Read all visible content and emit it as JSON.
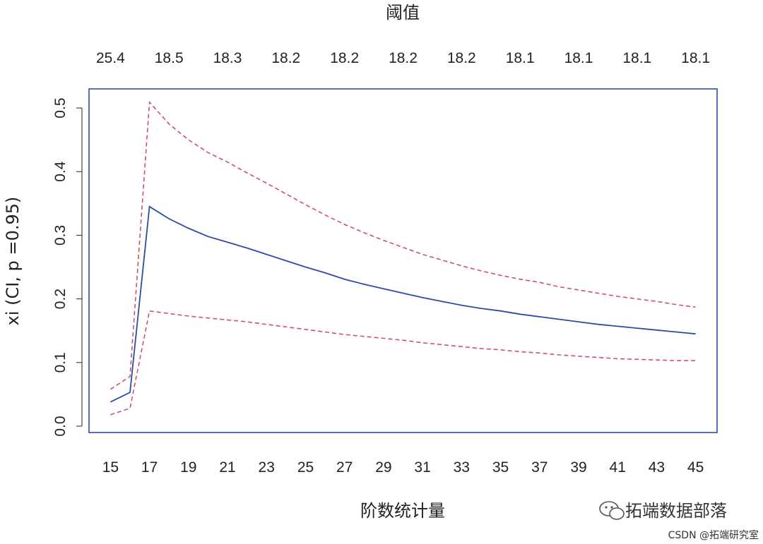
{
  "chart_data": {
    "type": "line",
    "title": "",
    "top_axis_label": "阈值",
    "xlabel": "阶数统计量",
    "ylabel": "xi (CI, p =0.95)",
    "xlim": [
      13.9,
      46.1
    ],
    "ylim": [
      -0.01,
      0.53
    ],
    "x_ticks": [
      15,
      17,
      19,
      21,
      23,
      25,
      27,
      29,
      31,
      33,
      35,
      37,
      39,
      41,
      43,
      45
    ],
    "y_ticks": [
      0.0,
      0.1,
      0.2,
      0.3,
      0.4,
      0.5
    ],
    "y_tick_labels": [
      "0.0",
      "0.1",
      "0.2",
      "0.3",
      "0.4",
      "0.5"
    ],
    "top_ticks": {
      "x": [
        15,
        18,
        21,
        24,
        27,
        30,
        33,
        36,
        39,
        42,
        45
      ],
      "labels": [
        "25.4",
        "18.5",
        "18.3",
        "18.2",
        "18.2",
        "18.2",
        "18.2",
        "18.1",
        "18.1",
        "18.1",
        "18.1"
      ]
    },
    "x": [
      15,
      16,
      17,
      18,
      19,
      20,
      21,
      22,
      23,
      24,
      25,
      26,
      27,
      28,
      29,
      30,
      31,
      32,
      33,
      34,
      35,
      36,
      37,
      38,
      39,
      40,
      41,
      42,
      43,
      44,
      45
    ],
    "series": [
      {
        "role": "estimate",
        "color": "#2b4ba8",
        "dash": "solid",
        "values": [
          0.038,
          0.053,
          0.345,
          0.326,
          0.311,
          0.298,
          0.289,
          0.28,
          0.27,
          0.26,
          0.25,
          0.241,
          0.231,
          0.223,
          0.216,
          0.209,
          0.202,
          0.196,
          0.19,
          0.185,
          0.181,
          0.176,
          0.172,
          0.168,
          0.164,
          0.16,
          0.157,
          0.154,
          0.151,
          0.148,
          0.145
        ]
      },
      {
        "role": "upper",
        "color": "#d0506a",
        "dash": "dashed",
        "values": [
          0.058,
          0.078,
          0.509,
          0.475,
          0.45,
          0.43,
          0.415,
          0.398,
          0.382,
          0.365,
          0.348,
          0.332,
          0.317,
          0.304,
          0.292,
          0.281,
          0.27,
          0.261,
          0.252,
          0.244,
          0.237,
          0.231,
          0.226,
          0.219,
          0.214,
          0.209,
          0.204,
          0.2,
          0.196,
          0.191,
          0.187
        ]
      },
      {
        "role": "lower",
        "color": "#d0506a",
        "dash": "dashed",
        "values": [
          0.018,
          0.028,
          0.181,
          0.177,
          0.173,
          0.17,
          0.167,
          0.164,
          0.16,
          0.156,
          0.152,
          0.148,
          0.144,
          0.141,
          0.138,
          0.135,
          0.131,
          0.128,
          0.125,
          0.122,
          0.12,
          0.117,
          0.115,
          0.112,
          0.11,
          0.108,
          0.106,
          0.105,
          0.104,
          0.103,
          0.103
        ]
      }
    ],
    "frame_color": "#2b4ba8",
    "grid": false,
    "legend": "none"
  },
  "watermark": {
    "brand": "拓端数据部落",
    "credit": "CSDN @拓端研究室",
    "icon": "wechat-icon"
  }
}
